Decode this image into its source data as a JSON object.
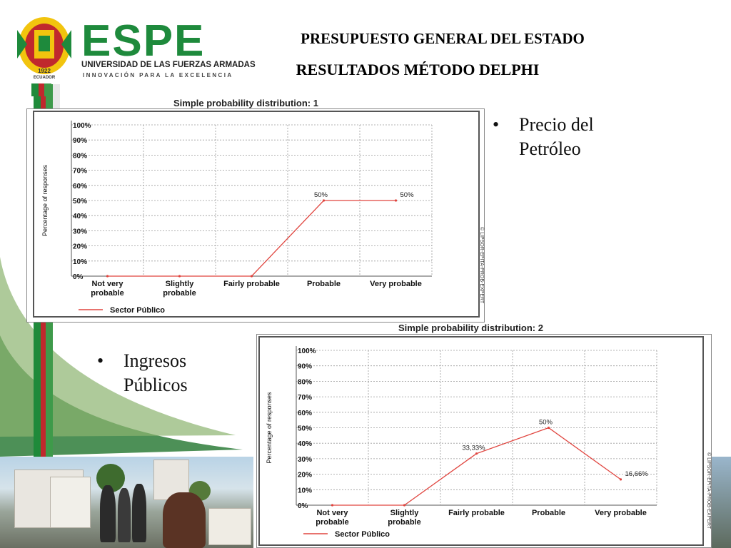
{
  "header": {
    "logo_text": "ESPE",
    "logo_sub1": "UNIVERSIDAD DE LAS FUERZAS ARMADAS",
    "logo_sub2": "INNOVACIÓN PARA LA EXCELENCIA",
    "crest_year": "1922",
    "crest_country": "ECUADOR",
    "title_line1": "PRESUPUESTO GENERAL DEL ESTADO",
    "title_line2": "RESULTADOS MÉTODO DELPHI"
  },
  "bullets": [
    {
      "line1": "Precio del",
      "line2": "Petróleo"
    },
    {
      "line1": "Ingresos",
      "line2": "Públicos"
    }
  ],
  "colors": {
    "brand_green": "#1e8a3c",
    "series_red": "#e0453f",
    "crest_yellow": "#f2c40e",
    "crest_red": "#c0282d"
  },
  "chart_data": [
    {
      "type": "line",
      "title": "Simple probability distribution: 1",
      "ylabel": "Percentage of responses",
      "xlabel": "",
      "side_note": "© LIPSOR-EPITA-PROB-EXPERT",
      "categories": [
        "Not very probable",
        "Slightly probable",
        "Fairly probable",
        "Probable",
        "Very probable"
      ],
      "y_ticks": [
        "100%",
        "90%",
        "80%",
        "70%",
        "60%",
        "50%",
        "40%",
        "30%",
        "20%",
        "10%",
        "0%"
      ],
      "ylim": [
        0,
        100
      ],
      "grid": true,
      "legend_position": "bottom-left",
      "series": [
        {
          "name": "Sector Público",
          "values": [
            0,
            0,
            0,
            50,
            50
          ],
          "labels": [
            "",
            "",
            "",
            "50%",
            "50%"
          ]
        }
      ]
    },
    {
      "type": "line",
      "title": "Simple probability distribution: 2",
      "ylabel": "Percentage of responses",
      "xlabel": "",
      "side_note": "© LIPSOR-EPITA-PROB-EXPERT",
      "categories": [
        "Not very probable",
        "Slightly probable",
        "Fairly probable",
        "Probable",
        "Very probable"
      ],
      "y_ticks": [
        "100%",
        "90%",
        "80%",
        "70%",
        "60%",
        "50%",
        "40%",
        "30%",
        "20%",
        "10%",
        "0%"
      ],
      "ylim": [
        0,
        100
      ],
      "grid": true,
      "legend_position": "bottom-left",
      "series": [
        {
          "name": "Sector Público",
          "values": [
            0,
            0,
            33.33,
            50,
            16.66
          ],
          "labels": [
            "",
            "",
            "33,33%",
            "50%",
            "16,66%"
          ]
        }
      ]
    }
  ]
}
